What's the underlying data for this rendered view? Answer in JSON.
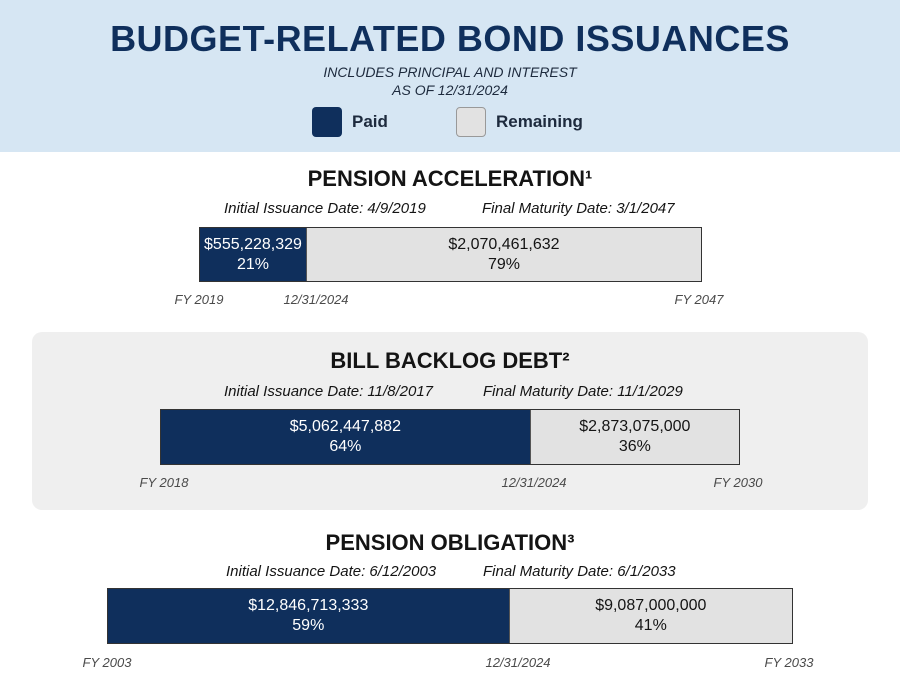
{
  "header": {
    "title": "BUDGET-RELATED BOND ISSUANCES",
    "subtitle_line1": "INCLUDES PRINCIPAL AND INTEREST",
    "subtitle_line2": "AS OF 12/31/2024"
  },
  "legend": {
    "paid": {
      "label": "Paid",
      "color": "#0f2f5c"
    },
    "remaining": {
      "label": "Remaining",
      "color": "#e2e2e2"
    }
  },
  "chart_data": [
    {
      "type": "bar",
      "title": "PENSION ACCELERATION¹",
      "initial_issuance": "Initial Issuance Date: 4/9/2019",
      "final_maturity": "Final Maturity Date: 3/1/2047",
      "categories": [
        "Paid",
        "Remaining"
      ],
      "values": [
        555228329,
        2070461632
      ],
      "value_labels": [
        "$555,228,329",
        "$2,070,461,632"
      ],
      "percent_labels": [
        "21%",
        "79%"
      ],
      "ticks": [
        "FY 2019",
        "12/31/2024",
        "FY 2047"
      ]
    },
    {
      "type": "bar",
      "title": "BILL BACKLOG DEBT²",
      "initial_issuance": "Initial Issuance Date: 11/8/2017",
      "final_maturity": "Final Maturity Date: 11/1/2029",
      "categories": [
        "Paid",
        "Remaining"
      ],
      "values": [
        5062447882,
        2873075000
      ],
      "value_labels": [
        "$5,062,447,882",
        "$2,873,075,000"
      ],
      "percent_labels": [
        "64%",
        "36%"
      ],
      "ticks": [
        "FY 2018",
        "12/31/2024",
        "FY 2030"
      ]
    },
    {
      "type": "bar",
      "title": "PENSION OBLIGATION³",
      "initial_issuance": "Initial Issuance Date: 6/12/2003",
      "final_maturity": "Final Maturity Date: 6/1/2033",
      "categories": [
        "Paid",
        "Remaining"
      ],
      "values": [
        12846713333,
        9087000000
      ],
      "value_labels": [
        "$12,846,713,333",
        "$9,087,000,000"
      ],
      "percent_labels": [
        "59%",
        "41%"
      ],
      "ticks": [
        "FY 2003",
        "12/31/2024",
        "FY 2033"
      ]
    }
  ]
}
